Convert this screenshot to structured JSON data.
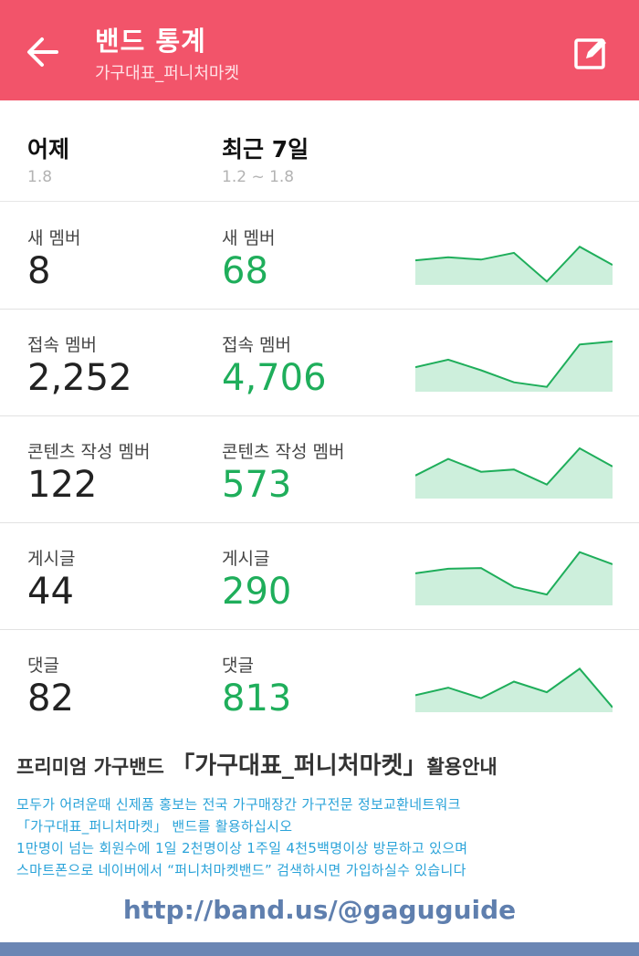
{
  "header": {
    "title": "밴드 통계",
    "subtitle": "가구대표_퍼니처마켓",
    "back_icon": "arrow-left-icon",
    "edit_icon": "edit-icon"
  },
  "periods": {
    "yesterday": {
      "label": "어제",
      "date": "1.8"
    },
    "week": {
      "label": "최근 7일",
      "date": "1.2 ~ 1.8"
    }
  },
  "stats": [
    {
      "label": "새 멤버",
      "yesterday": "8",
      "week": "68",
      "trend": [
        30,
        34,
        31,
        40,
        2,
        48,
        24
      ]
    },
    {
      "label": "접속 멤버",
      "yesterday": "2,252",
      "week": "4,706",
      "trend": [
        30,
        40,
        26,
        10,
        4,
        60,
        64
      ]
    },
    {
      "label": "콘텐츠 작성 멤버",
      "yesterday": "122",
      "week": "573",
      "trend": [
        28,
        50,
        33,
        36,
        16,
        64,
        40
      ]
    },
    {
      "label": "게시글",
      "yesterday": "44",
      "week": "290",
      "trend": [
        40,
        46,
        47,
        22,
        12,
        68,
        52
      ]
    },
    {
      "label": "댓글",
      "yesterday": "82",
      "week": "813",
      "trend": [
        20,
        30,
        16,
        38,
        24,
        55,
        4
      ]
    }
  ],
  "promo": {
    "head_prefix": "프리미엄 가구밴드 ",
    "head_name": "「가구대표_퍼니처마켓」",
    "head_suffix": "활용안내",
    "lines": [
      "모두가 어려운때 신제품 홍보는 전국 가구매장간 가구전문 정보교환네트워크",
      "「가구대표_퍼니처마켓」 밴드를 활용하십시오",
      "1만명이 넘는 회원수에 1일 2천명이상 1주일 4천5백명이상 방문하고 있으며",
      "스마트폰으로 네이버에서 “퍼니처마켓밴드” 검색하시면 가입하실수 있습니다"
    ],
    "link": "http://band.us/@gaguguide"
  },
  "colors": {
    "header_bg": "#f2546a",
    "accent_green": "#1fae5b",
    "spark_fill": "#cdefdc",
    "promo_text": "#2aa3d9",
    "link_text": "#5f7fae"
  }
}
